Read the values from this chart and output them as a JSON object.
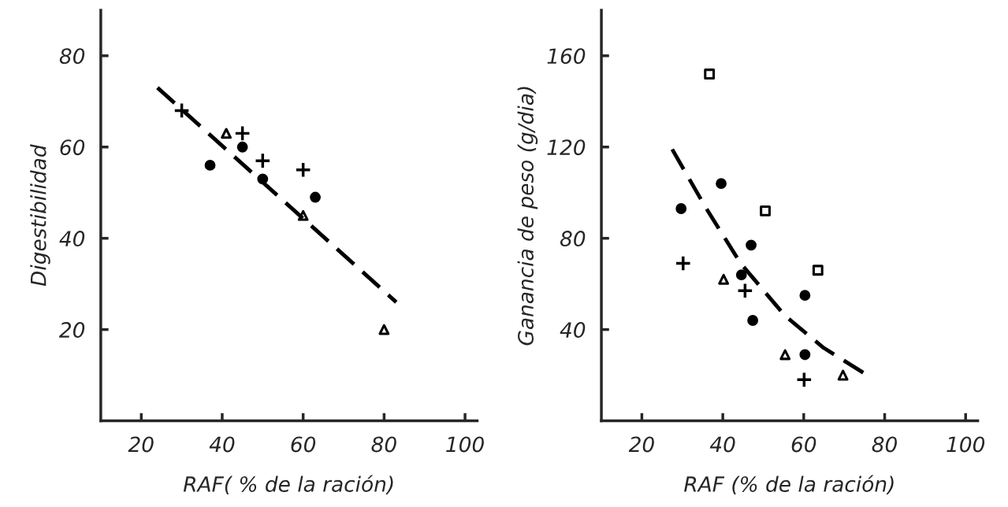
{
  "chart_data": [
    {
      "type": "scatter",
      "xlabel": "RAF( % de la ración)",
      "ylabel": "Digestibilidad",
      "xlim": [
        10,
        103
      ],
      "ylim": [
        0,
        90
      ],
      "xticks": [
        20,
        40,
        60,
        80,
        100
      ],
      "yticks": [
        20,
        40,
        60,
        80
      ],
      "grid": false,
      "legend": false,
      "series": [
        {
          "color": "#000000",
          "marker": "cross",
          "x": [
            30,
            45,
            50,
            60
          ],
          "values": [
            68,
            63,
            57,
            55
          ]
        },
        {
          "color": "#000000",
          "marker": "triangle",
          "x": [
            41,
            60,
            80
          ],
          "values": [
            63,
            45,
            20
          ]
        },
        {
          "color": "#000000",
          "marker": "circle",
          "x": [
            37,
            50
          ],
          "values": [
            56,
            53
          ]
        },
        {
          "color": "#000000",
          "marker": "circle",
          "x": [
            45,
            63
          ],
          "values": [
            60,
            49
          ]
        },
        {
          "type": "line",
          "color": "#000000",
          "marker": "none",
          "line_style": "dashed",
          "x": [
            24,
            83
          ],
          "values": [
            73,
            26
          ]
        }
      ]
    },
    {
      "type": "scatter",
      "xlabel": "RAF (% de la ración)",
      "ylabel": "Ganancia de peso (g/dia)",
      "xlim": [
        10,
        103
      ],
      "ylim": [
        0,
        180
      ],
      "xticks": [
        20,
        40,
        60,
        80,
        100
      ],
      "yticks": [
        40,
        80,
        120,
        160
      ],
      "grid": false,
      "legend": false,
      "series": [
        {
          "color": "#000000",
          "marker": "square",
          "x": [
            36.7,
            50.5,
            63.5
          ],
          "values": [
            152,
            92,
            66
          ]
        },
        {
          "color": "#000000",
          "marker": "circle",
          "x": [
            39.6,
            60.3,
            60.3
          ],
          "values": [
            104,
            55,
            29
          ]
        },
        {
          "color": "#000000",
          "marker": "circle",
          "x": [
            29.7,
            47,
            44.6,
            47.4
          ],
          "values": [
            93,
            77,
            64,
            44
          ]
        },
        {
          "color": "#000000",
          "marker": "cross",
          "x": [
            30.2,
            45.5,
            60.1
          ],
          "values": [
            69,
            57,
            18
          ]
        },
        {
          "color": "#000000",
          "marker": "triangle",
          "x": [
            40.2,
            55.4,
            69.7
          ],
          "values": [
            62,
            29,
            20
          ]
        },
        {
          "type": "line",
          "color": "#000000",
          "marker": "none",
          "line_style": "dashed",
          "x": [
            27.5,
            35.6,
            44.4,
            55.4,
            64.9,
            74.8
          ],
          "values": [
            119,
            94,
            69,
            46,
            32,
            21
          ]
        }
      ]
    }
  ]
}
